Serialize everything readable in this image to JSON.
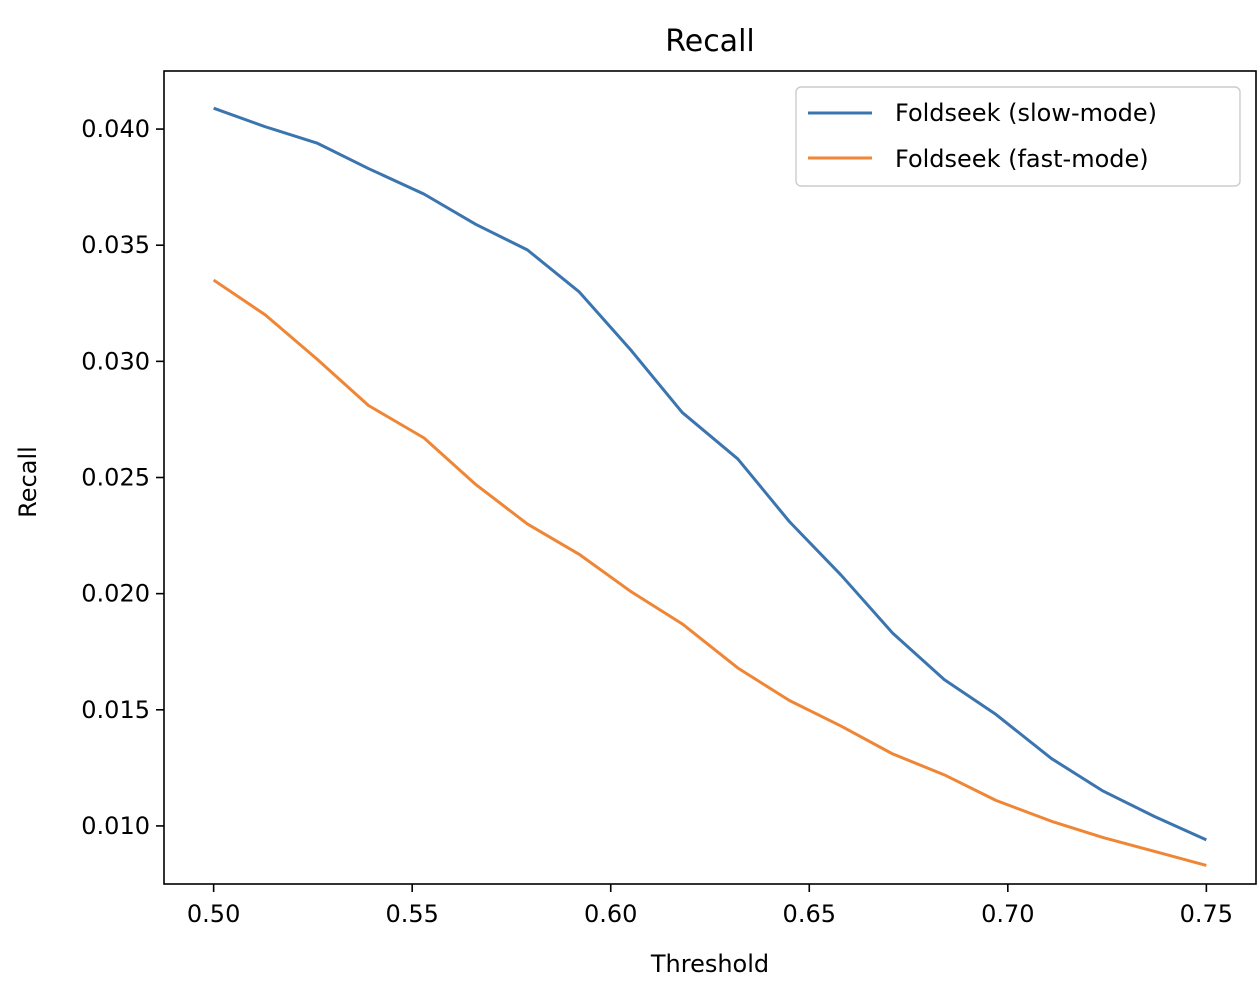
{
  "chart_data": {
    "type": "line",
    "title": "Recall",
    "xlabel": "Threshold",
    "ylabel": "Recall",
    "xlim": [
      0.4875,
      0.7625
    ],
    "ylim": [
      0.0075,
      0.0425
    ],
    "xticks": [
      0.5,
      0.55,
      0.6,
      0.65,
      0.7,
      0.75
    ],
    "xtick_labels": [
      "0.50",
      "0.55",
      "0.60",
      "0.65",
      "0.70",
      "0.75"
    ],
    "yticks": [
      0.01,
      0.015,
      0.02,
      0.025,
      0.03,
      0.035,
      0.04
    ],
    "ytick_labels": [
      "0.010",
      "0.015",
      "0.020",
      "0.025",
      "0.030",
      "0.035",
      "0.040"
    ],
    "grid": false,
    "legend_position": "top-right",
    "x": [
      0.5,
      0.513,
      0.526,
      0.539,
      0.553,
      0.566,
      0.579,
      0.592,
      0.605,
      0.618,
      0.632,
      0.645,
      0.658,
      0.671,
      0.684,
      0.697,
      0.711,
      0.724,
      0.737,
      0.75
    ],
    "series": [
      {
        "name": "Foldseek (slow-mode)",
        "color": "#3b75af",
        "values": [
          0.0409,
          0.0401,
          0.0394,
          0.0383,
          0.0372,
          0.0359,
          0.0348,
          0.033,
          0.0305,
          0.0278,
          0.0258,
          0.0231,
          0.0208,
          0.0183,
          0.0163,
          0.0148,
          0.0129,
          0.0115,
          0.0104,
          0.0094
        ]
      },
      {
        "name": "Foldseek (fast-mode)",
        "color": "#ef8636",
        "values": [
          0.0335,
          0.032,
          0.0301,
          0.0281,
          0.0267,
          0.0247,
          0.023,
          0.0217,
          0.0201,
          0.0187,
          0.0168,
          0.0154,
          0.0143,
          0.0131,
          0.0122,
          0.0111,
          0.0102,
          0.0095,
          0.0089,
          0.0083
        ]
      }
    ]
  }
}
